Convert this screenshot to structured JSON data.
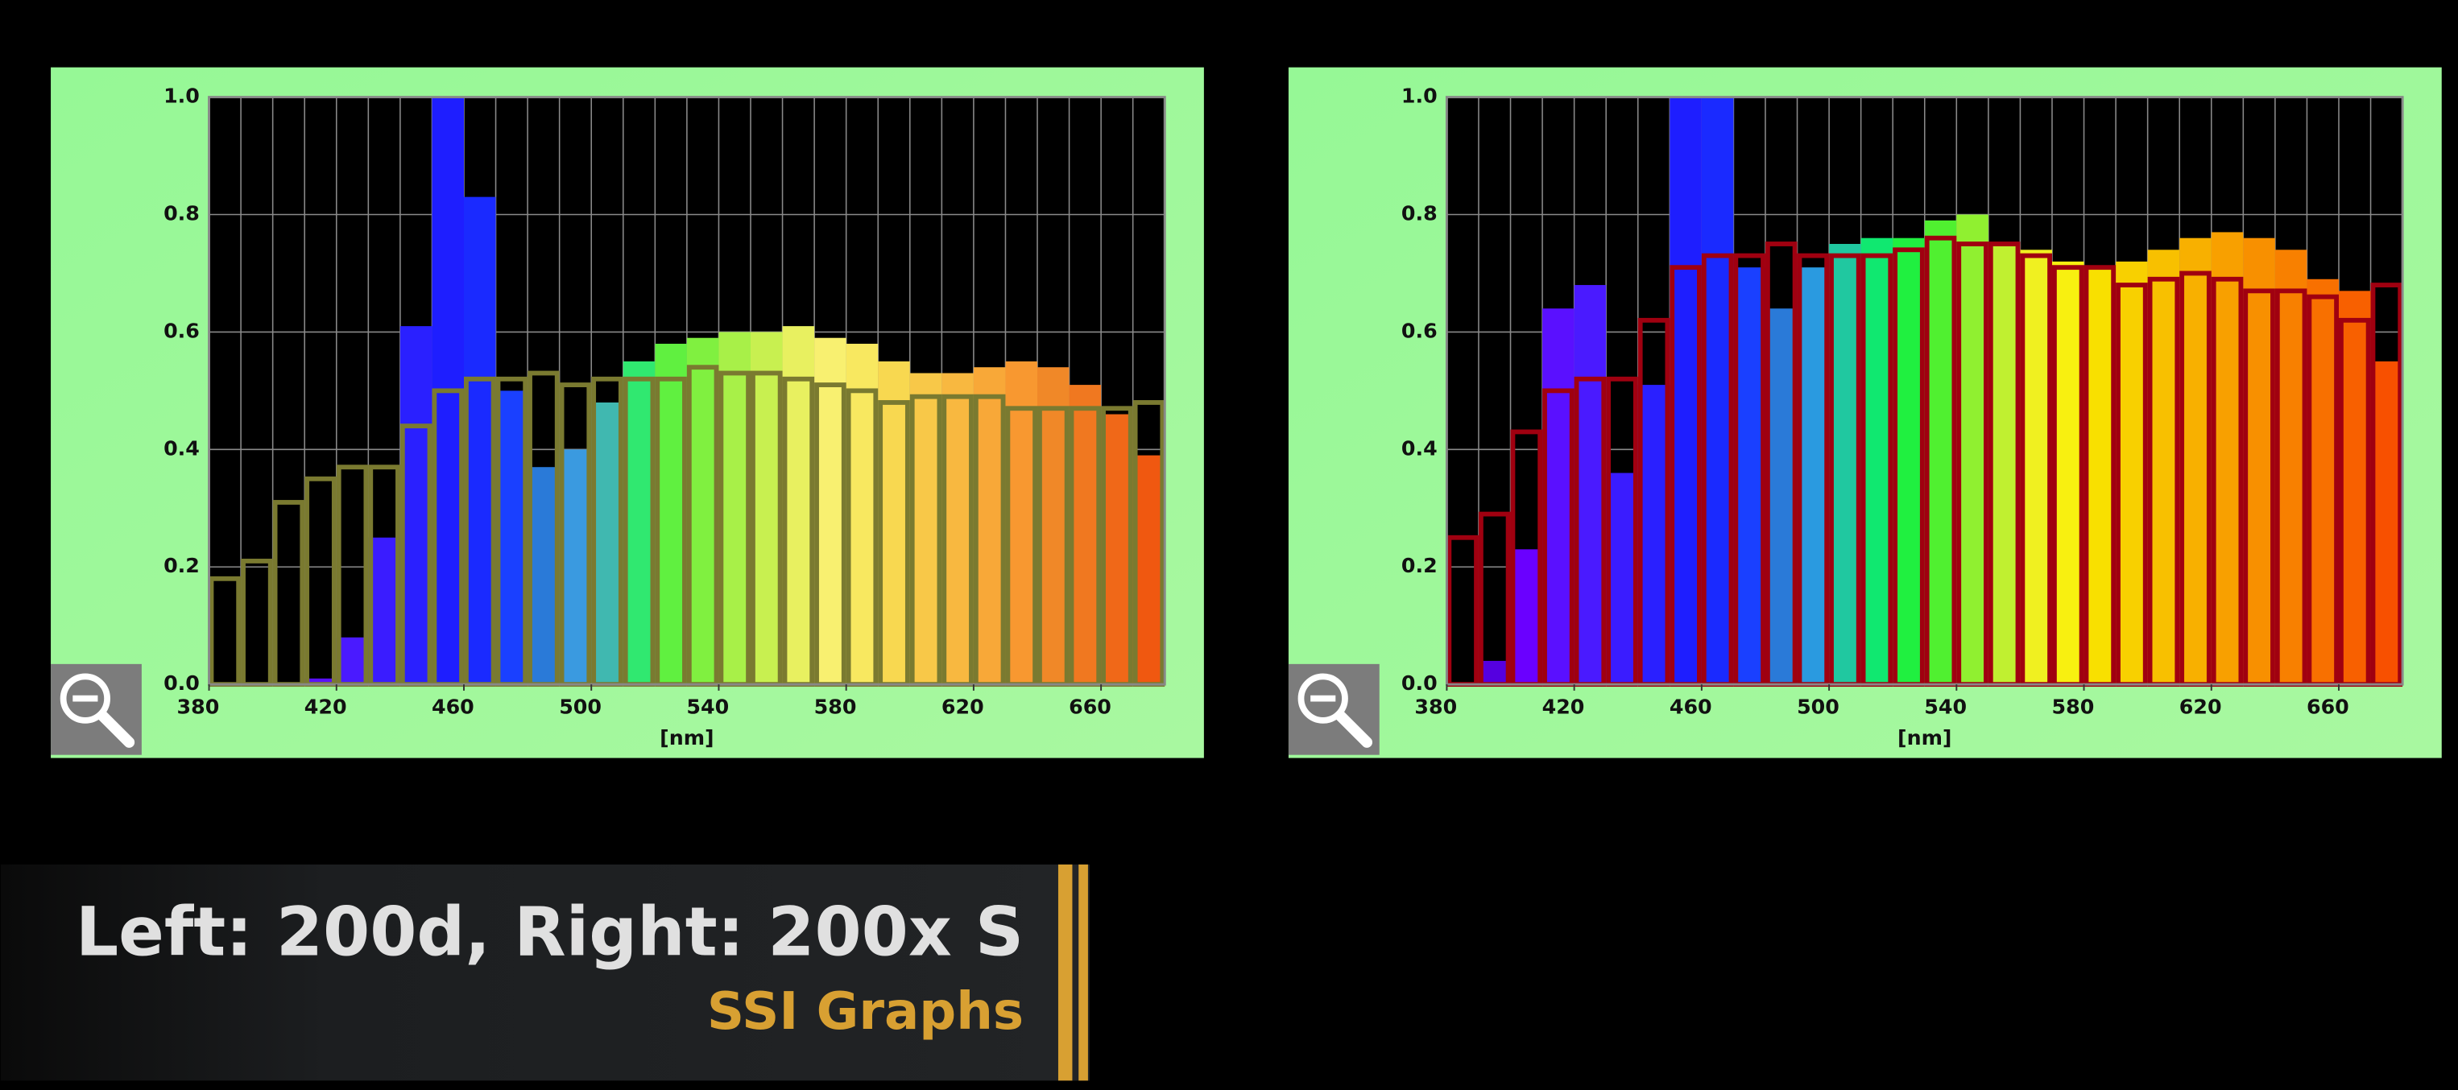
{
  "chart_data": [
    {
      "type": "histogram",
      "bins": [
        380,
        390,
        400,
        410,
        420,
        430,
        440,
        450,
        460,
        470,
        480,
        490,
        500,
        510,
        520,
        530,
        540,
        550,
        560,
        570,
        580,
        590,
        600,
        610,
        620,
        630,
        640,
        650,
        660,
        670,
        680
      ],
      "xlim": [
        380,
        680
      ],
      "xticks": [
        380,
        420,
        460,
        500,
        540,
        580,
        620,
        660
      ],
      "xlabel": "[nm]",
      "ylim": [
        0,
        1
      ],
      "yticks": [
        {
          "value": 0,
          "label": "0.0"
        },
        0.2,
        0.4,
        0.6,
        0.8,
        {
          "value": 1,
          "label": "1.0"
        }
      ],
      "grid": true,
      "series": [
        {
          "style": "fill",
          "colors": [
            "#4b00c8",
            "#5500e0",
            "#6a00ff",
            "#5a10ff",
            "#4a1aff",
            "#3a1cff",
            "#2a20ff",
            "#1e1eff",
            "#1a2aff",
            "#1a40ff",
            "#2a7ad8",
            "#3a9ae0",
            "#40b8b0",
            "#30e870",
            "#60f040",
            "#80f040",
            "#a8f048",
            "#c8f050",
            "#e8f060",
            "#f8f070",
            "#f8e860",
            "#f8d850",
            "#f8c848",
            "#f8b840",
            "#f8a838",
            "#f89830",
            "#f08828",
            "#f07820",
            "#f06818",
            "#f05810"
          ],
          "values": [
            0,
            0,
            0,
            0.01,
            0.08,
            0.25,
            0.61,
            1.0,
            0.83,
            0.5,
            0.37,
            0.4,
            0.48,
            0.55,
            0.58,
            0.59,
            0.6,
            0.6,
            0.61,
            0.59,
            0.58,
            0.55,
            0.53,
            0.53,
            0.54,
            0.55,
            0.54,
            0.51,
            0.46,
            0.39
          ]
        },
        {
          "style": "outline",
          "color": "#7a7a30",
          "values": [
            0.18,
            0.21,
            0.31,
            0.35,
            0.37,
            0.37,
            0.44,
            0.5,
            0.52,
            0.52,
            0.53,
            0.51,
            0.52,
            0.52,
            0.52,
            0.54,
            0.53,
            0.53,
            0.52,
            0.51,
            0.5,
            0.48,
            0.49,
            0.49,
            0.49,
            0.47,
            0.47,
            0.47,
            0.47,
            0.48
          ]
        }
      ]
    },
    {
      "type": "histogram",
      "bins": [
        380,
        390,
        400,
        410,
        420,
        430,
        440,
        450,
        460,
        470,
        480,
        490,
        500,
        510,
        520,
        530,
        540,
        550,
        560,
        570,
        580,
        590,
        600,
        610,
        620,
        630,
        640,
        650,
        660,
        670,
        680
      ],
      "xlim": [
        380,
        680
      ],
      "xticks": [
        380,
        420,
        460,
        500,
        540,
        580,
        620,
        660
      ],
      "xlabel": "[nm]",
      "ylim": [
        0,
        1
      ],
      "yticks": [
        {
          "value": 0,
          "label": "0.0"
        },
        0.2,
        0.4,
        0.6,
        0.8,
        {
          "value": 1,
          "label": "1.0"
        }
      ],
      "grid": true,
      "series": [
        {
          "style": "fill",
          "colors": [
            "#4b00c8",
            "#5500e0",
            "#6a00ff",
            "#5a10ff",
            "#4a1aff",
            "#3a1cff",
            "#2a20ff",
            "#1e1eff",
            "#1a2aff",
            "#1a40ff",
            "#2a7ad8",
            "#2a9ae0",
            "#20c8a0",
            "#10e870",
            "#20f040",
            "#50f030",
            "#90f030",
            "#c0f030",
            "#f0f020",
            "#f8f010",
            "#f8e000",
            "#f8d000",
            "#f8c000",
            "#f8b000",
            "#f8a000",
            "#f89000",
            "#f88000",
            "#f87000",
            "#f86000",
            "#f85000"
          ],
          "values": [
            0,
            0.04,
            0.23,
            0.64,
            0.68,
            0.36,
            0.51,
            1.0,
            1.0,
            0.71,
            0.64,
            0.71,
            0.75,
            0.76,
            0.76,
            0.79,
            0.8,
            0.75,
            0.74,
            0.72,
            0.71,
            0.72,
            0.74,
            0.76,
            0.77,
            0.76,
            0.74,
            0.69,
            0.67,
            0.55
          ]
        },
        {
          "style": "outline",
          "color": "#a00010",
          "values": [
            0.25,
            0.29,
            0.43,
            0.5,
            0.52,
            0.52,
            0.62,
            0.71,
            0.73,
            0.73,
            0.75,
            0.73,
            0.73,
            0.73,
            0.74,
            0.76,
            0.75,
            0.75,
            0.73,
            0.71,
            0.71,
            0.68,
            0.69,
            0.7,
            0.69,
            0.67,
            0.67,
            0.66,
            0.62,
            0.68
          ]
        }
      ]
    }
  ],
  "caption": {
    "title": "Left: 200d, Right: 200x S",
    "subtitle": "SSI Graphs"
  }
}
